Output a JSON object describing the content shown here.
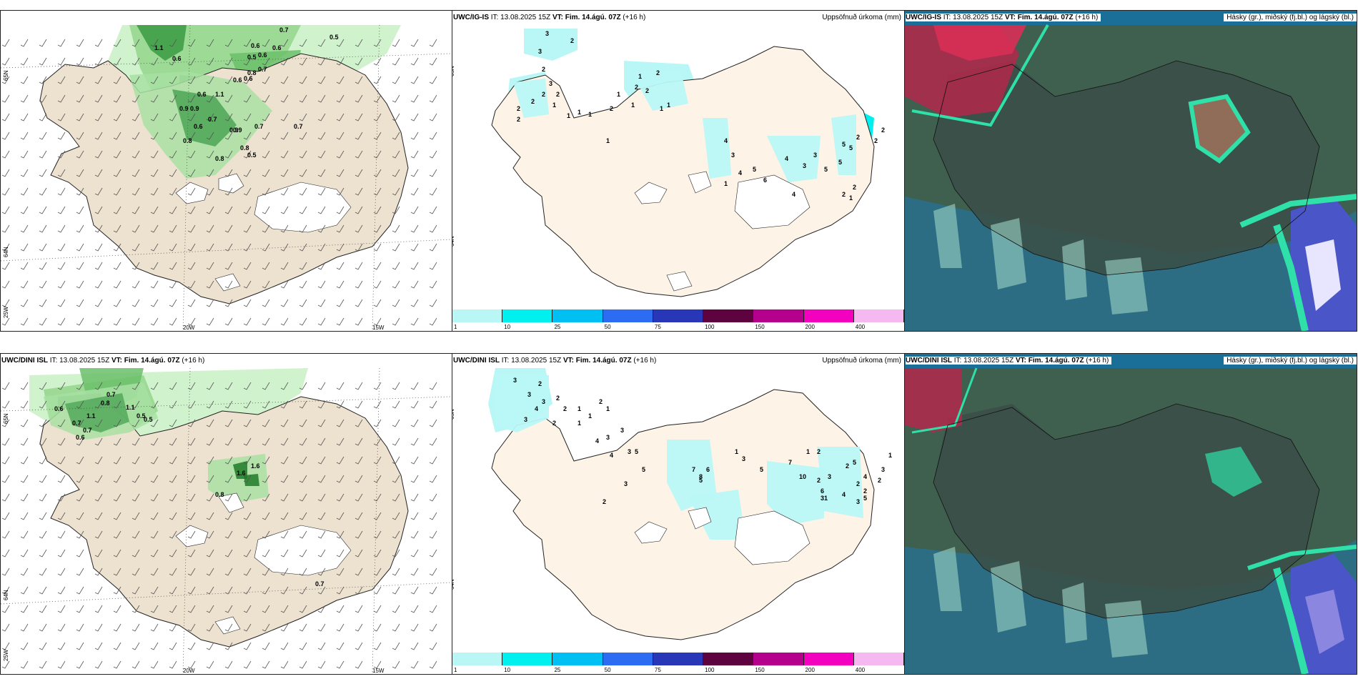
{
  "ig_is": {
    "model": "UWC/IG-IS",
    "it_label": "IT:",
    "it_value": "13.08.2025 15Z",
    "vt_label": "VT:",
    "vt_value": "Fim. 14.ágú. 07Z",
    "lead": "(+16 h)"
  },
  "dini": {
    "model": "UWC/DINI ISL",
    "it_label": "IT:",
    "it_value": "13.08.2025 15Z",
    "vt_label": "VT:",
    "vt_value": "Fim. 14.ágú. 07Z",
    "lead": "(+16 h)"
  },
  "precip_title": "Uppsöfnuð úrkoma (mm)",
  "cloud_title": "Hásky (gr.), miðský (fj.bl.) og lágský (bl.)",
  "axis_labels": {
    "w20": "20W",
    "w15": "15W",
    "n65": "65N",
    "n64": "64N",
    "w25": "25W"
  },
  "colorbar": {
    "labels": [
      "1",
      "10",
      "25",
      "50",
      "75",
      "100",
      "150",
      "200",
      "400"
    ],
    "colors": [
      "#b9f7f7",
      "#00f0f0",
      "#00bff2",
      "#2b6cf2",
      "#2737b8",
      "#5e0240",
      "#b4008c",
      "#f400bf",
      "#f6b8f0"
    ]
  },
  "ig_labels": [
    "0.7",
    "0.6",
    "0.6",
    "0.5",
    "0.6",
    "0.8",
    "0.7",
    "0.6",
    "0.6",
    "0.5",
    "1.1",
    "0.6",
    "0.9",
    "0.7",
    "0.6",
    "0.9",
    "0.7",
    "0.9",
    "0.8",
    "0.8",
    "0.5",
    "0.7",
    "0.6",
    "1.1",
    "0.8",
    "0.9"
  ],
  "ig_precip_labels": [
    "3",
    "2",
    "3",
    "2",
    "3",
    "2",
    "2",
    "2",
    "2",
    "1",
    "2",
    "1",
    "1",
    "1",
    "2",
    "2",
    "1",
    "2",
    "2",
    "1",
    "1",
    "1",
    "1",
    "4",
    "3",
    "1",
    "4",
    "5",
    "6",
    "4",
    "3",
    "3",
    "4",
    "5",
    "5",
    "5",
    "5",
    "2",
    "2",
    "1",
    "2",
    "2",
    "2",
    "1"
  ],
  "dini_labels": [
    "0.7",
    "0.8",
    "1.1",
    "0.5",
    "0.6",
    "0.7",
    "0.5",
    "0.7",
    "0.6",
    "1.1",
    "1.6",
    "0.8",
    "1.6",
    "0.7"
  ],
  "dini_precip_labels": [
    "3",
    "2",
    "3",
    "2",
    "3",
    "4",
    "3",
    "2",
    "2",
    "1",
    "1",
    "2",
    "1",
    "1",
    "4",
    "3",
    "3",
    "4",
    "3",
    "5",
    "5",
    "3",
    "2",
    "5",
    "6",
    "7",
    "8",
    "1",
    "3",
    "5",
    "7",
    "10",
    "2",
    "3",
    "6",
    "5",
    "4",
    "2",
    "3",
    "2",
    "1",
    "2",
    "2",
    "2",
    "1",
    "3",
    "1",
    "4",
    "3",
    "5"
  ]
}
